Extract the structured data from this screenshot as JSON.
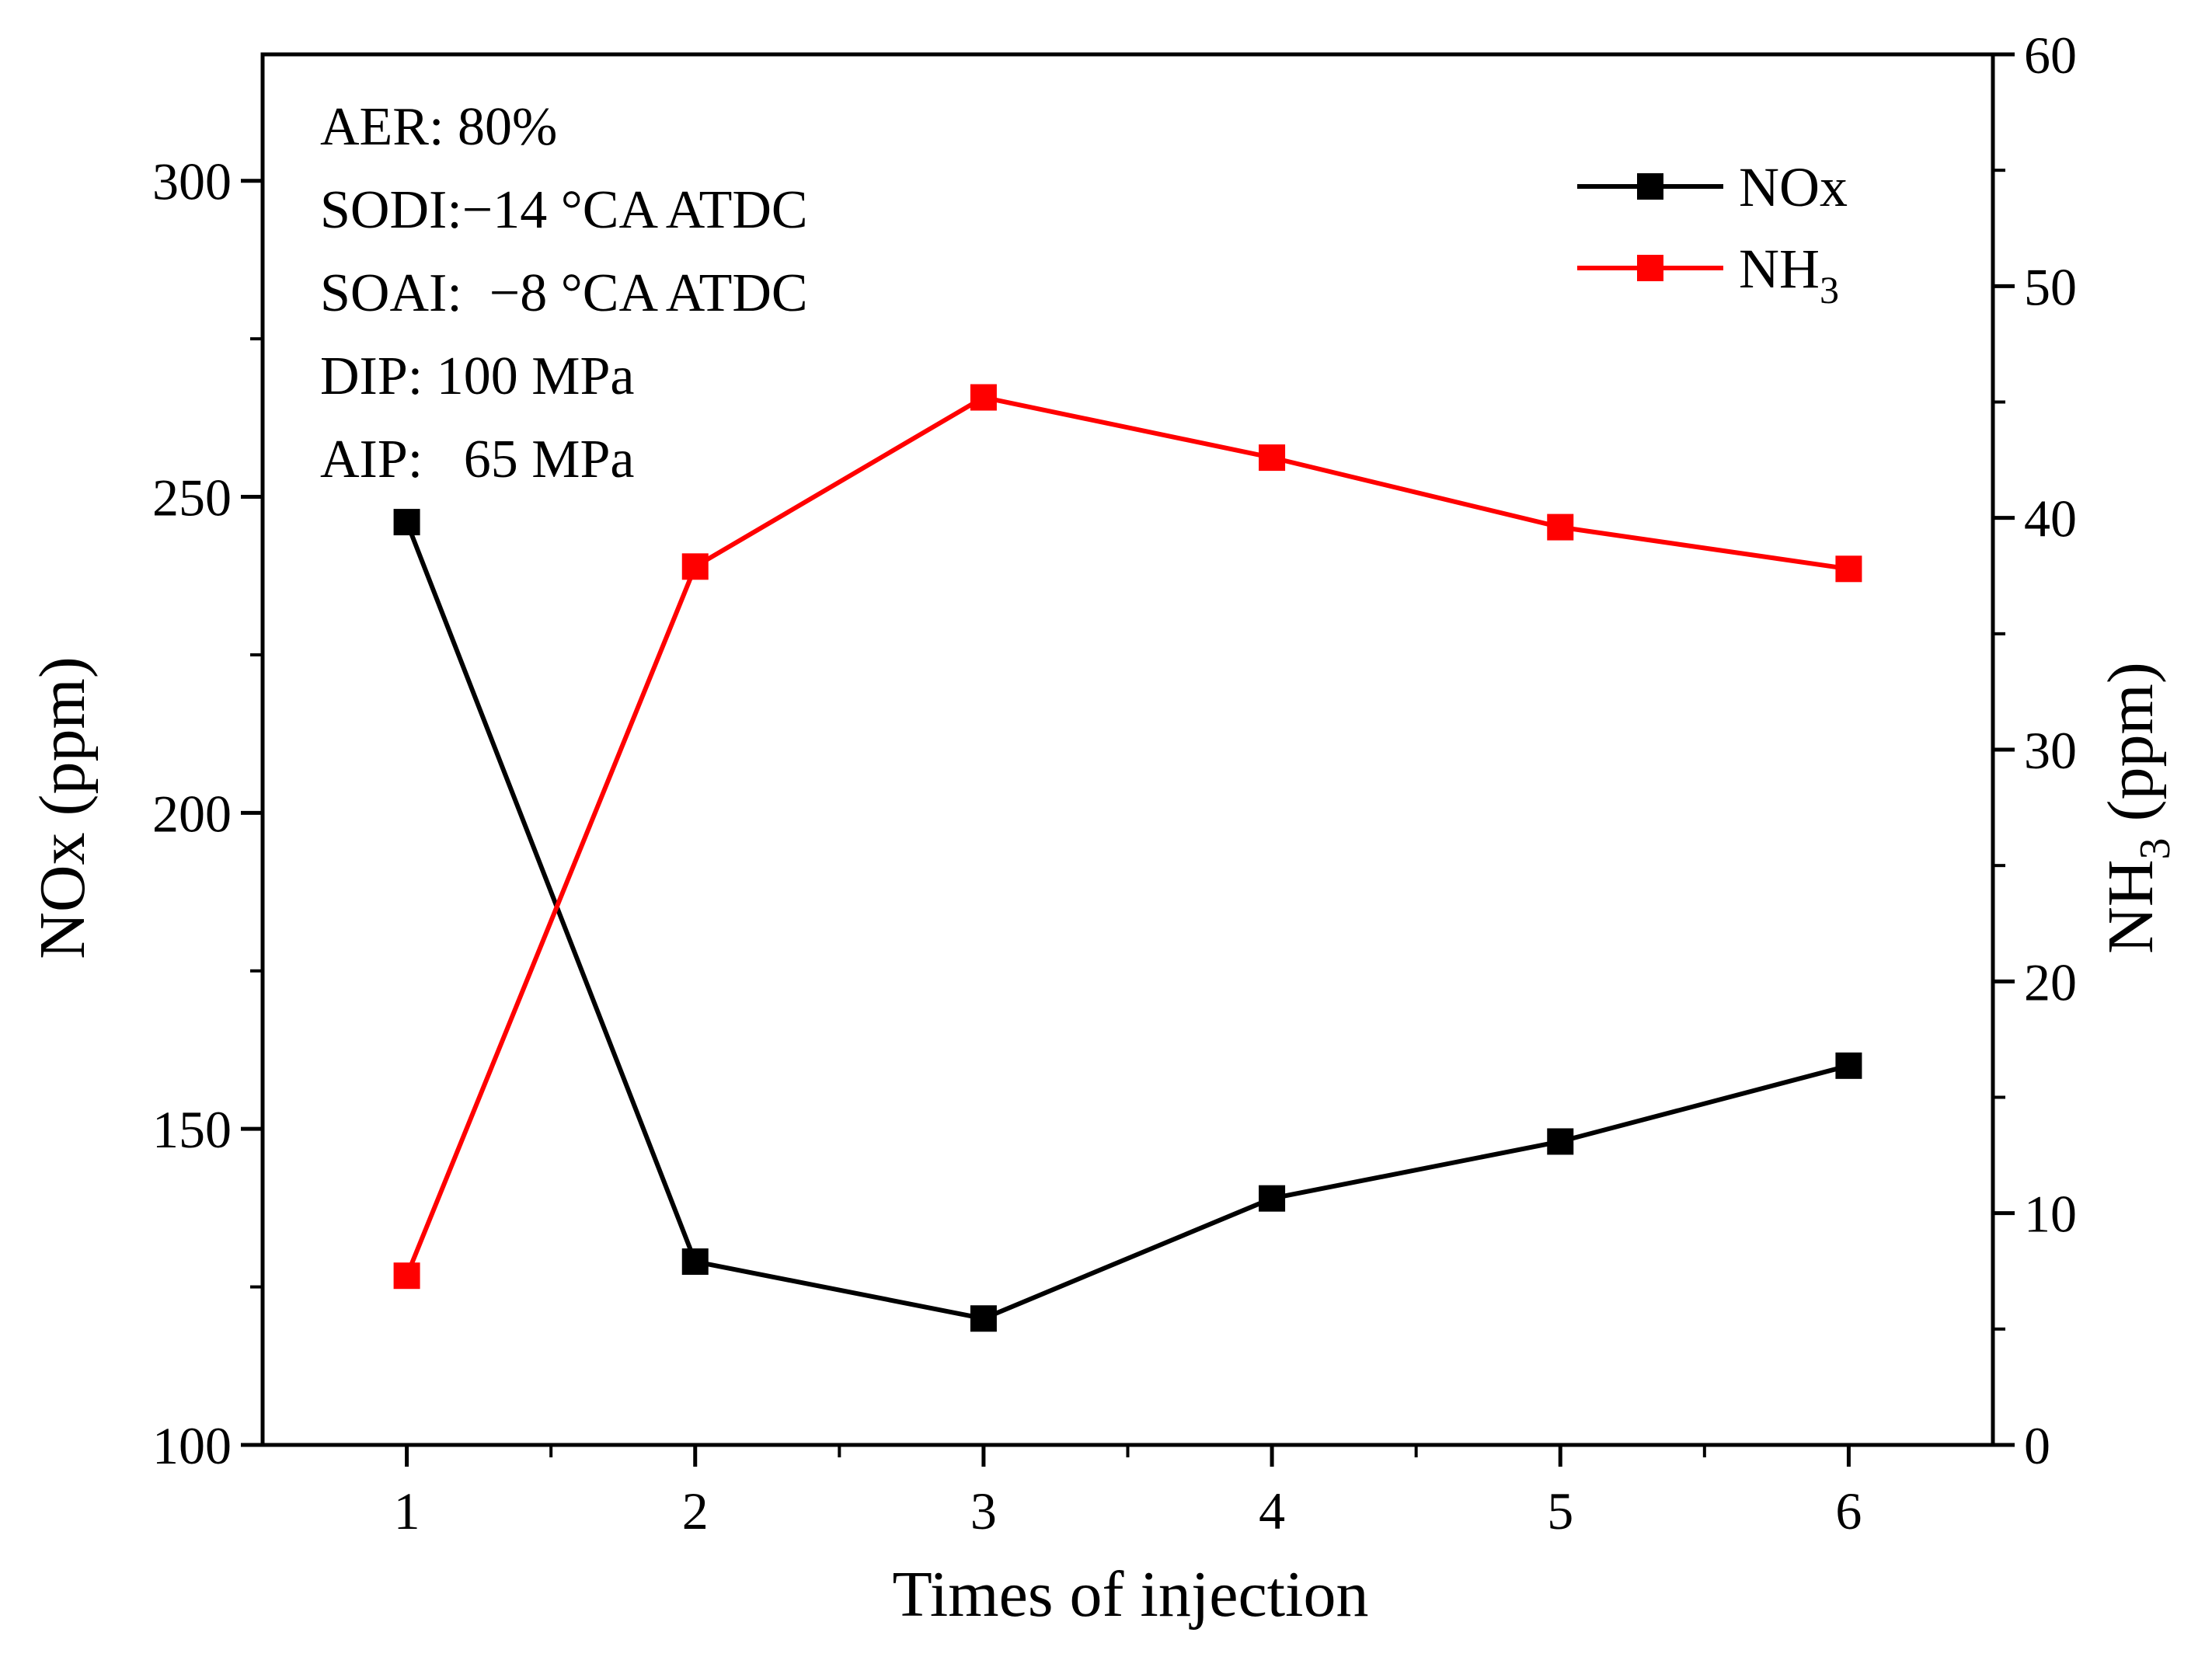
{
  "chart_data": {
    "type": "line",
    "x": [
      1,
      2,
      3,
      4,
      5,
      6
    ],
    "xlabel": "Times of injection",
    "xlim": [
      0.5,
      6.5
    ],
    "xticks": [
      "1",
      "2",
      "3",
      "4",
      "5",
      "6"
    ],
    "ylabel": "NOx (ppm)",
    "ylim": [
      100,
      320
    ],
    "yticks": [
      "100",
      "150",
      "200",
      "250",
      "300"
    ],
    "y2label_main": "NH",
    "y2label_sub": "3",
    "y2label_tail": " (ppm)",
    "y2lim": [
      0,
      60
    ],
    "y2ticks": [
      "0",
      "10",
      "20",
      "30",
      "40",
      "50",
      "60"
    ],
    "series": [
      {
        "name": "NOx",
        "axis": "left",
        "color": "#000000",
        "values": [
          246,
          129,
          120,
          139,
          148,
          160
        ]
      },
      {
        "name_main": "NH",
        "name_sub": "3",
        "axis": "right",
        "color": "#ff0000",
        "values": [
          7.3,
          37.9,
          45.2,
          42.6,
          39.6,
          37.8
        ]
      }
    ],
    "annotations": [
      "AER: 80%",
      "SODI:−14 °CA ATDC",
      "SOAI:  −8 °CA ATDC",
      "DIP: 100 MPa",
      "AIP:   65 MPa"
    ],
    "legend_position": "top-right",
    "grid": false
  }
}
